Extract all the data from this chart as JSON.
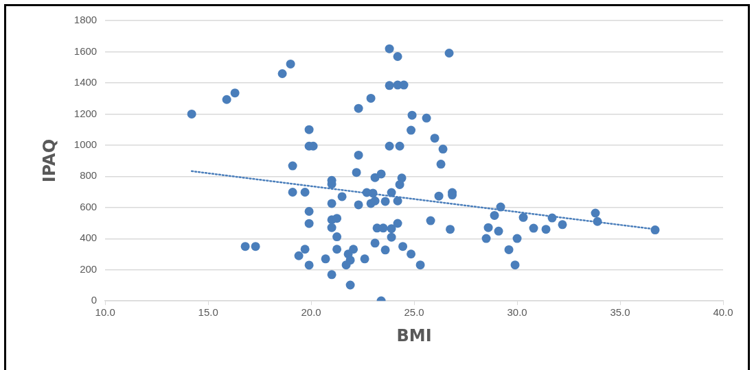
{
  "chart_data": {
    "type": "scatter",
    "xlabel": "BMI",
    "ylabel": "IPAQ",
    "xlim": [
      10,
      40
    ],
    "xticks": [
      {
        "value": 10,
        "label": "10.0"
      },
      {
        "value": 15,
        "label": "15.0"
      },
      {
        "value": 20,
        "label": "20.0"
      },
      {
        "value": 25,
        "label": "25.0"
      },
      {
        "value": 30,
        "label": "30.0"
      },
      {
        "value": 35,
        "label": "35.0"
      },
      {
        "value": 40,
        "label": "40.0"
      }
    ],
    "ylim": [
      0,
      1800
    ],
    "yticks": [
      0,
      200,
      400,
      600,
      800,
      1000,
      1200,
      1400,
      1600,
      1800
    ],
    "grid": "y",
    "legend": false,
    "marker": "circle",
    "series": [
      {
        "color": "#4a7ebb",
        "x": [
          14.2,
          15.9,
          16.3,
          18.6,
          19.0,
          19.9,
          19.9,
          20.1,
          19.1,
          19.1,
          19.7,
          19.9,
          19.9,
          16.8,
          17.3,
          19.4,
          19.7,
          19.9,
          21.0,
          21.0,
          21.5,
          21.0,
          21.0,
          21.25,
          21.0,
          21.25,
          21.25,
          20.7,
          21.0,
          22.05,
          21.8,
          21.9,
          21.7,
          22.6,
          21.9,
          22.3,
          22.2,
          22.3,
          22.9,
          22.3,
          22.7,
          23.0,
          23.1,
          23.4,
          22.9,
          23.1,
          23.6,
          23.2,
          23.5,
          23.1,
          23.6,
          23.4,
          23.8,
          24.2,
          23.8,
          24.2,
          24.5,
          23.8,
          24.3,
          23.9,
          24.4,
          24.3,
          24.2,
          23.9,
          24.2,
          23.9,
          24.45,
          24.85,
          25.3,
          24.9,
          24.85,
          25.6,
          26.0,
          26.4,
          26.3,
          26.2,
          26.85,
          26.85,
          26.7,
          25.8,
          26.75,
          29.2,
          28.9,
          28.6,
          29.1,
          28.5,
          29.6,
          30.0,
          29.9,
          30.3,
          30.8,
          31.4,
          31.7,
          32.2,
          33.8,
          33.9,
          36.7
        ],
        "values": [
          1200,
          1293,
          1335,
          1459,
          1521,
          1100,
          994,
          994,
          867,
          698,
          698,
          575,
          497,
          350,
          350,
          290,
          332,
          230,
          774,
          750,
          670,
          626,
          521,
          530,
          471,
          412,
          332,
          270,
          169,
          332,
          301,
          262,
          231,
          270,
          102,
          936,
          825,
          1236,
          1301,
          617,
          696,
          692,
          792,
          815,
          626,
          642,
          639,
          468,
          468,
          371,
          327,
          1,
          1619,
          1569,
          1383,
          1386,
          1386,
          994,
          994,
          696,
          789,
          747,
          642,
          464,
          498,
          409,
          350,
          301,
          231,
          1192,
          1096,
          1174,
          1045,
          975,
          878,
          673,
          696,
          680,
          1591,
          515,
          460,
          603,
          549,
          471,
          448,
          401,
          329,
          401,
          231,
          536,
          467,
          460,
          533,
          490,
          564,
          510,
          456
        ]
      },
      {
        "type": "line",
        "color": "#4a7ebb",
        "line_style": "dotted",
        "marker": "none",
        "x": [
          14.2,
          36.7
        ],
        "values": [
          833,
          460
        ]
      }
    ]
  }
}
